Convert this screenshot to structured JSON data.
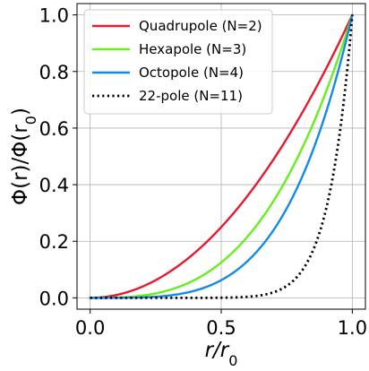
{
  "chart_data": {
    "type": "line",
    "xlabel": "r/r0",
    "xlabel_main": "r/r",
    "xlabel_sub": "0",
    "ylabel": "Φ(r)/Φ(r0)",
    "ylabel_main": "Φ(r)/Φ(r",
    "ylabel_sub": "0",
    "ylabel_close": ")",
    "xlim": [
      -0.05,
      1.05
    ],
    "ylim": [
      -0.04,
      1.04
    ],
    "xticks": [
      0.0,
      0.5,
      1.0
    ],
    "xtick_labels": [
      "0.0",
      "0.5",
      "1.0"
    ],
    "yticks": [
      0.0,
      0.2,
      0.4,
      0.6,
      0.8,
      1.0
    ],
    "ytick_labels": [
      "0.0",
      "0.2",
      "0.4",
      "0.6",
      "0.8",
      "1.0"
    ],
    "grid": true,
    "legend": "top-left",
    "series": [
      {
        "name": "Quadrupole (N=2)",
        "N": 2,
        "color": "#e8182e",
        "style": "solid"
      },
      {
        "name": "Hexapole (N=3)",
        "N": 3,
        "color": "#66ee1e",
        "style": "solid"
      },
      {
        "name": "Octopole (N=4)",
        "N": 4,
        "color": "#128ae6",
        "style": "solid"
      },
      {
        "name": "22-pole (N=11)",
        "N": 11,
        "color": "#000000",
        "style": "dotted"
      }
    ]
  }
}
